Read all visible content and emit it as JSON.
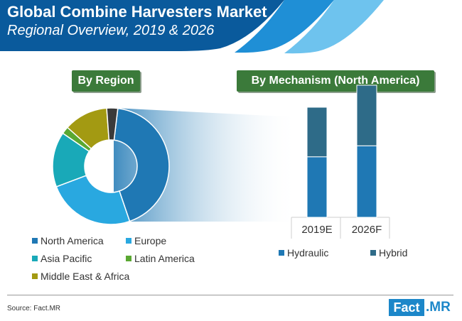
{
  "header": {
    "title": "Global Combine Harvesters Market",
    "subtitle": "Regional Overview, 2019 & 2026"
  },
  "tags": {
    "region": "By Region",
    "mechanism": "By Mechanism (North America)"
  },
  "colors": {
    "north_america": "#1f78b4",
    "europe": "#29a8e0",
    "asia_pacific": "#19a9b8",
    "latin_america": "#5aa832",
    "middle_east_africa": "#a39a12",
    "other": "#3a3a3a",
    "hydraulic": "#1f78b4",
    "hybrid": "#2e6b88",
    "header_dark": "#0a5a9c",
    "tag_green": "#3b7a3a"
  },
  "chart_data": [
    {
      "type": "pie",
      "variant": "donut",
      "title": "By Region",
      "labels": [
        "North America",
        "Europe",
        "Asia Pacific",
        "Latin America",
        "Middle East & Africa",
        ""
      ],
      "values": [
        42,
        24,
        15,
        2,
        12,
        3
      ],
      "legend": [
        "North America",
        "Europe",
        "Asia Pacific",
        "Latin America",
        "Middle East & Africa"
      ]
    },
    {
      "type": "bar",
      "stacked": true,
      "title": "By Mechanism (North America)",
      "categories": [
        "2019E",
        "2026F"
      ],
      "series": [
        {
          "name": "Hydraulic",
          "values": [
            55,
            65
          ]
        },
        {
          "name": "Hybrid",
          "values": [
            45,
            55
          ]
        }
      ],
      "ylim": [
        0,
        120
      ]
    }
  ],
  "source": "Source: Fact.MR",
  "logo": {
    "part1": "Fact",
    "part2": ".MR"
  }
}
